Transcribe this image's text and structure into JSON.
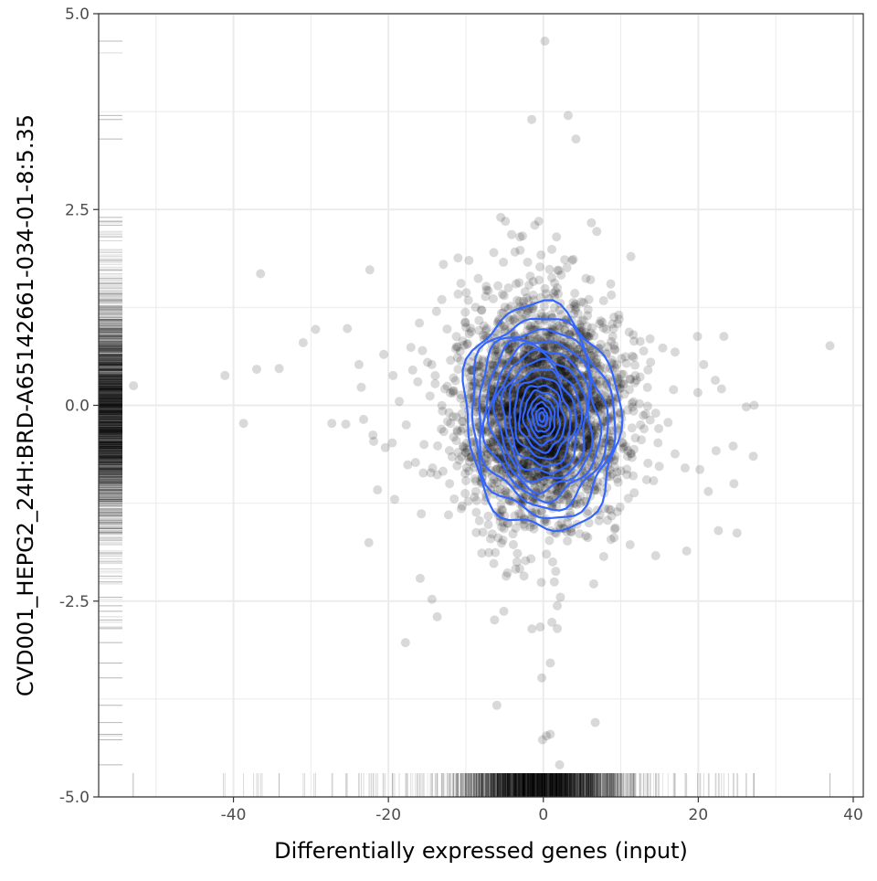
{
  "chart_data": {
    "type": "scatter",
    "title": "",
    "xlabel": "Differentially expressed genes (input)",
    "ylabel": "CVD001_HEPG2_24H:BRD-A65142661-034-01-8:5.35",
    "xlim": [
      -57.4,
      41.3
    ],
    "ylim": [
      -5.0,
      5.0
    ],
    "x_ticks": [
      -40,
      -20,
      0,
      20,
      40
    ],
    "x_tick_labels": [
      "-40",
      "-20",
      "0",
      "20",
      "40"
    ],
    "y_ticks": [
      -5.0,
      -2.5,
      0.0,
      2.5,
      5.0
    ],
    "y_tick_labels": [
      "-5.0",
      "-2.5",
      "0.0",
      "2.5",
      "5.0"
    ],
    "grid": true,
    "legend": "none",
    "point_color": "#000000",
    "contour_color": "#3366FF",
    "marginal_rugs": [
      "bottom",
      "left"
    ],
    "points": [
      {
        "x": 0.2,
        "y": 4.65
      },
      {
        "x": -1.5,
        "y": 3.65
      },
      {
        "x": 3.2,
        "y": 3.7
      },
      {
        "x": 4.2,
        "y": 3.4
      },
      {
        "x": -5.5,
        "y": 2.4
      },
      {
        "x": -4.9,
        "y": 2.35
      },
      {
        "x": -1.1,
        "y": 2.3
      },
      {
        "x": -0.6,
        "y": 2.35
      },
      {
        "x": 6.2,
        "y": 2.33
      },
      {
        "x": 6.9,
        "y": 2.22
      },
      {
        "x": -4.1,
        "y": 2.18
      },
      {
        "x": 1.7,
        "y": 2.15
      },
      {
        "x": 3.7,
        "y": 1.85
      },
      {
        "x": 11.3,
        "y": 1.9
      },
      {
        "x": -36.5,
        "y": 1.68
      },
      {
        "x": -22.4,
        "y": 1.73
      },
      {
        "x": -12.9,
        "y": 1.8
      },
      {
        "x": -13.1,
        "y": 1.35
      },
      {
        "x": -52.9,
        "y": 0.25
      },
      {
        "x": -41.1,
        "y": 0.38
      },
      {
        "x": -37.0,
        "y": 0.46
      },
      {
        "x": -34.1,
        "y": 0.47
      },
      {
        "x": -31.0,
        "y": 0.8
      },
      {
        "x": -29.4,
        "y": 0.97
      },
      {
        "x": -25.3,
        "y": 0.98
      },
      {
        "x": -23.8,
        "y": 0.52
      },
      {
        "x": -23.5,
        "y": 0.23
      },
      {
        "x": -38.7,
        "y": -0.23
      },
      {
        "x": -27.3,
        "y": -0.23
      },
      {
        "x": -25.5,
        "y": -0.24
      },
      {
        "x": -23.2,
        "y": -0.18
      },
      {
        "x": -22.0,
        "y": -0.38
      },
      {
        "x": -21.9,
        "y": -0.46
      },
      {
        "x": -20.4,
        "y": -0.54
      },
      {
        "x": -19.5,
        "y": -0.48
      },
      {
        "x": -21.4,
        "y": -1.08
      },
      {
        "x": -19.2,
        "y": -1.2
      },
      {
        "x": -17.5,
        "y": -0.76
      },
      {
        "x": -16.5,
        "y": -0.73
      },
      {
        "x": -15.9,
        "y": -2.21
      },
      {
        "x": -17.8,
        "y": -3.03
      },
      {
        "x": -13.7,
        "y": -2.7
      },
      {
        "x": -6.3,
        "y": -2.74
      },
      {
        "x": -5.1,
        "y": -2.63
      },
      {
        "x": -4.8,
        "y": -2.18
      },
      {
        "x": -6.4,
        "y": -2.02
      },
      {
        "x": -2.5,
        "y": -2.18
      },
      {
        "x": 2.2,
        "y": -2.45
      },
      {
        "x": 1.8,
        "y": -2.56
      },
      {
        "x": -0.4,
        "y": -2.83
      },
      {
        "x": 1.1,
        "y": -2.77
      },
      {
        "x": 1.8,
        "y": -2.85
      },
      {
        "x": 0.9,
        "y": -3.29
      },
      {
        "x": -0.2,
        "y": -3.48
      },
      {
        "x": -6.0,
        "y": -3.83
      },
      {
        "x": 6.7,
        "y": -4.05
      },
      {
        "x": 0.4,
        "y": -4.22
      },
      {
        "x": 0.9,
        "y": -4.2
      },
      {
        "x": -0.1,
        "y": -4.27
      },
      {
        "x": 2.1,
        "y": -4.59
      },
      {
        "x": 6.5,
        "y": -2.28
      },
      {
        "x": 14.5,
        "y": -1.92
      },
      {
        "x": 18.5,
        "y": -1.86
      },
      {
        "x": 22.6,
        "y": -1.6
      },
      {
        "x": 25.0,
        "y": -1.63
      },
      {
        "x": 27.1,
        "y": -0.65
      },
      {
        "x": 24.5,
        "y": -0.52
      },
      {
        "x": 24.6,
        "y": -1.0
      },
      {
        "x": 21.3,
        "y": -1.1
      },
      {
        "x": 18.3,
        "y": -0.8
      },
      {
        "x": 17.0,
        "y": -0.62
      },
      {
        "x": 20.2,
        "y": -0.82
      },
      {
        "x": 22.3,
        "y": -0.58
      },
      {
        "x": 26.2,
        "y": -0.02
      },
      {
        "x": 27.2,
        "y": 0.0
      },
      {
        "x": 23.0,
        "y": 0.21
      },
      {
        "x": 22.2,
        "y": 0.32
      },
      {
        "x": 20.7,
        "y": 0.52
      },
      {
        "x": 23.3,
        "y": 0.88
      },
      {
        "x": 19.9,
        "y": 0.88
      },
      {
        "x": 17.0,
        "y": 0.68
      },
      {
        "x": 13.5,
        "y": 0.45
      },
      {
        "x": 37.0,
        "y": 0.76
      },
      {
        "x": 11.1,
        "y": 0.2
      },
      {
        "x": 12.4,
        "y": 0.02
      },
      {
        "x": 16.8,
        "y": 0.2
      },
      {
        "x": 14.5,
        "y": -0.1
      },
      {
        "x": 13.0,
        "y": -0.3
      },
      {
        "x": 14.8,
        "y": -0.48
      },
      {
        "x": 11.6,
        "y": -0.9
      },
      {
        "x": 9.9,
        "y": -1.3
      },
      {
        "x": 11.2,
        "y": -1.78
      },
      {
        "x": 9.2,
        "y": -1.58
      },
      {
        "x": 7.3,
        "y": -1.4
      },
      {
        "x": 3.6,
        "y": -1.62
      },
      {
        "x": 1.2,
        "y": -2.0
      },
      {
        "x": 1.6,
        "y": -2.12
      },
      {
        "x": 0.4,
        "y": -1.9
      },
      {
        "x": -1.6,
        "y": -1.96
      },
      {
        "x": -3.4,
        "y": -2.0
      },
      {
        "x": -5.2,
        "y": -1.72
      },
      {
        "x": -7.8,
        "y": -1.62
      },
      {
        "x": -10.6,
        "y": -1.32
      },
      {
        "x": -12.1,
        "y": -1.0
      },
      {
        "x": -14.3,
        "y": -0.8
      },
      {
        "x": -15.4,
        "y": -0.5
      },
      {
        "x": -17.7,
        "y": -0.25
      },
      {
        "x": -18.6,
        "y": 0.05
      },
      {
        "x": -16.2,
        "y": 0.3
      },
      {
        "x": -14.4,
        "y": 0.52
      },
      {
        "x": -17.1,
        "y": 0.74
      },
      {
        "x": -19.4,
        "y": 0.38
      },
      {
        "x": -20.6,
        "y": 0.65
      },
      {
        "x": -16.0,
        "y": 1.05
      },
      {
        "x": -13.8,
        "y": 1.2
      },
      {
        "x": -11.0,
        "y": 1.42
      },
      {
        "x": -8.4,
        "y": 1.62
      },
      {
        "x": -9.6,
        "y": 1.85
      },
      {
        "x": -6.4,
        "y": 1.95
      },
      {
        "x": -3.0,
        "y": 1.98
      },
      {
        "x": -0.3,
        "y": 1.92
      },
      {
        "x": 2.0,
        "y": 1.72
      },
      {
        "x": 5.5,
        "y": 1.62
      },
      {
        "x": 8.7,
        "y": 1.55
      },
      {
        "x": 9.8,
        "y": 1.1
      },
      {
        "x": 11.7,
        "y": 0.82
      },
      {
        "x": 10.6,
        "y": 0.62
      },
      {
        "x": 9.3,
        "y": 0.35
      },
      {
        "x": 8.6,
        "y": -0.45
      },
      {
        "x": 9.5,
        "y": -0.85
      },
      {
        "x": 8.2,
        "y": -1.05
      },
      {
        "x": 5.8,
        "y": -1.35
      },
      {
        "x": 3.1,
        "y": -1.5
      },
      {
        "x": -2.4,
        "y": -1.55
      },
      {
        "x": -5.6,
        "y": -1.38
      },
      {
        "x": -8.7,
        "y": -1.1
      },
      {
        "x": -10.0,
        "y": -0.6
      },
      {
        "x": -11.2,
        "y": -0.15
      },
      {
        "x": -11.6,
        "y": 0.35
      },
      {
        "x": -10.4,
        "y": 0.82
      },
      {
        "x": -8.0,
        "y": 1.22
      },
      {
        "x": -4.5,
        "y": 1.5
      },
      {
        "x": -1.3,
        "y": 1.58
      },
      {
        "x": 1.8,
        "y": 1.5
      },
      {
        "x": 4.9,
        "y": 1.32
      },
      {
        "x": 7.4,
        "y": 1.08
      },
      {
        "x": 8.3,
        "y": 0.75
      }
    ],
    "density_contours": {
      "center": [
        -0.2,
        -0.15
      ],
      "levels": [
        {
          "rx": 10.0,
          "ry_up": 1.42,
          "ry_down": 1.45
        },
        {
          "rx": 9.2,
          "ry_up": 1.25,
          "ry_down": 1.28
        },
        {
          "rx": 8.3,
          "ry_up": 1.12,
          "ry_down": 1.14
        },
        {
          "rx": 7.4,
          "ry_up": 1.0,
          "ry_down": 1.02
        },
        {
          "rx": 6.5,
          "ry_up": 0.9,
          "ry_down": 0.92
        },
        {
          "rx": 5.8,
          "ry_up": 0.8,
          "ry_down": 0.82
        },
        {
          "rx": 5.0,
          "ry_up": 0.7,
          "ry_down": 0.72
        },
        {
          "rx": 4.3,
          "ry_up": 0.6,
          "ry_down": 0.62
        },
        {
          "rx": 3.6,
          "ry_up": 0.5,
          "ry_down": 0.52
        },
        {
          "rx": 2.9,
          "ry_up": 0.41,
          "ry_down": 0.43
        },
        {
          "rx": 2.3,
          "ry_up": 0.33,
          "ry_down": 0.34
        },
        {
          "rx": 1.7,
          "ry_up": 0.25,
          "ry_down": 0.26
        },
        {
          "rx": 1.2,
          "ry_up": 0.18,
          "ry_down": 0.19
        },
        {
          "rx": 0.7,
          "ry_up": 0.11,
          "ry_down": 0.12
        },
        {
          "rx": 0.35,
          "ry_up": 0.06,
          "ry_down": 0.06
        }
      ]
    },
    "rug_x_sparse": [
      -53.0,
      -41.3,
      -37.4,
      -36.8,
      -36.3,
      -34.1,
      -30.8,
      -29.6,
      -27.2,
      -25.4,
      -23.8,
      -22.2,
      -21.6,
      -20.7,
      -19.5,
      -17.6,
      -16.3,
      14.6,
      16.9,
      18.4,
      20.3,
      21.4,
      22.7,
      23.9,
      25.1,
      26.2,
      27.2,
      37.0
    ],
    "rug_y_sparse": [
      4.65,
      4.5,
      3.7,
      3.65,
      3.4,
      2.4,
      2.35,
      2.3,
      2.2,
      2.1,
      -2.25,
      -2.45,
      -2.56,
      -2.63,
      -2.74,
      -2.84,
      -3.03,
      -3.29,
      -3.48,
      -3.83,
      -4.05,
      -4.2,
      -4.27,
      -4.59
    ]
  }
}
